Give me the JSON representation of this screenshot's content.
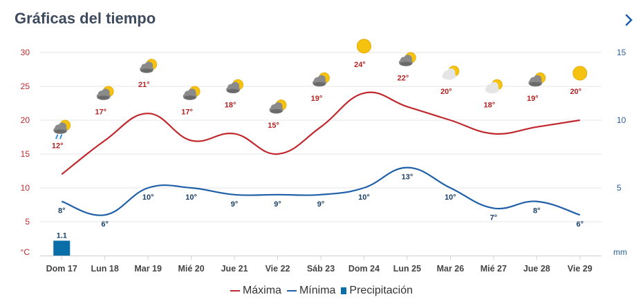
{
  "header": {
    "title": "Gráficas del tiempo",
    "next_icon": "chevron-right-icon"
  },
  "colors": {
    "max": "#c0282d",
    "min": "#1f5fa8",
    "precip": "#0a6fa8",
    "title": "#3d4b5c",
    "grid": "#e6e6e6",
    "axis_left": "#c0282d",
    "axis_right": "#2a5f9e"
  },
  "chart_data": {
    "type": "line",
    "categories": [
      "Dom 17",
      "Lun 18",
      "Mar 19",
      "Mié 20",
      "Jue 21",
      "Vie 22",
      "Sáb 23",
      "Dom 24",
      "Lun 25",
      "Mar 26",
      "Mié 27",
      "Jue 28",
      "Vie 29"
    ],
    "series": [
      {
        "name": "Máxima",
        "values": [
          12,
          17,
          21,
          17,
          18,
          15,
          19,
          24,
          22,
          20,
          18,
          19,
          20
        ],
        "labels": [
          "12°",
          "17°",
          "21°",
          "17°",
          "18°",
          "15°",
          "19°",
          "24°",
          "22°",
          "20°",
          "18°",
          "19°",
          "20°"
        ]
      },
      {
        "name": "Mínima",
        "values": [
          8,
          6,
          10,
          10,
          9,
          9,
          9,
          10,
          13,
          10,
          7,
          8,
          6
        ],
        "labels": [
          "8°",
          "6°",
          "10°",
          "10°",
          "9°",
          "9°",
          "9°",
          "10°",
          "13°",
          "10°",
          "7°",
          "8°",
          "6°"
        ]
      },
      {
        "name": "Precipitación",
        "axis": "right",
        "values": [
          1.1,
          0,
          0,
          0,
          0,
          0,
          0,
          0,
          0,
          0,
          0,
          0,
          0
        ],
        "labels": [
          "1.1"
        ]
      }
    ],
    "icons": [
      "rain-cloud-sun-icon",
      "cloud-sun-icon",
      "cloud-sun-icon",
      "cloud-sun-icon",
      "cloud-sun-icon",
      "cloud-sun-icon",
      "cloud-sun-icon",
      "sun-icon",
      "cloud-sun-icon",
      "sun-cloud-light-icon",
      "sun-cloud-light-icon",
      "cloud-sun-icon",
      "sun-icon"
    ],
    "y_left": {
      "unit": "°C",
      "ticks": [
        5,
        10,
        15,
        20,
        25,
        30
      ],
      "range": [
        0,
        30
      ]
    },
    "y_right": {
      "unit": "mm",
      "ticks": [
        5,
        10,
        15
      ],
      "range": [
        0,
        15
      ]
    },
    "grid": true,
    "legend_position": "bottom"
  }
}
